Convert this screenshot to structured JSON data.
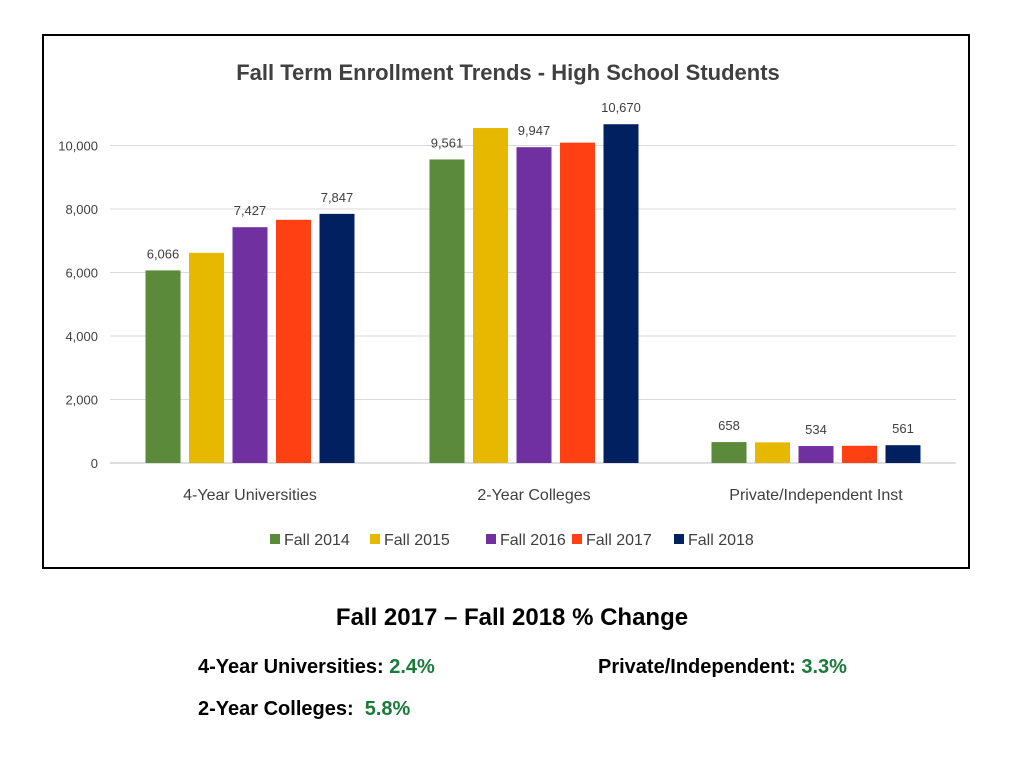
{
  "chart_data": {
    "type": "bar",
    "title": "Fall Term Enrollment Trends - High School Students",
    "categories": [
      "4-Year Universities",
      "2-Year Colleges",
      "Private/Independent Inst"
    ],
    "series": [
      {
        "name": "Fall 2014",
        "color": "#5a8a3a",
        "values": [
          6066,
          9561,
          658
        ]
      },
      {
        "name": "Fall 2015",
        "color": "#e6b800",
        "values": [
          6620,
          10550,
          650
        ]
      },
      {
        "name": "Fall 2016",
        "color": "#7030a0",
        "values": [
          7427,
          9947,
          534
        ]
      },
      {
        "name": "Fall 2017",
        "color": "#ff4013",
        "values": [
          7660,
          10090,
          543
        ]
      },
      {
        "name": "Fall 2018",
        "color": "#002060",
        "values": [
          7847,
          10670,
          561
        ]
      }
    ],
    "data_labels": [
      [
        "6,066",
        "",
        "7,427",
        "",
        "7,847"
      ],
      [
        "9,561",
        "",
        "9,947",
        "",
        "10,670"
      ],
      [
        "658",
        "",
        "534",
        "",
        "561"
      ]
    ],
    "yticks": [
      "0",
      "2,000",
      "4,000",
      "6,000",
      "8,000",
      "10,000"
    ],
    "ylim": [
      0,
      12000
    ],
    "grid": true,
    "legend_position": "bottom"
  },
  "summary": {
    "title": "Fall 2017 – Fall 2018 % Change",
    "four_year_label": "4-Year Universities:",
    "four_year_value": "2.4%",
    "private_label": "Private/Independent:",
    "private_value": "3.3%",
    "two_year_label": "2-Year Colleges:",
    "two_year_value": "5.8%"
  }
}
